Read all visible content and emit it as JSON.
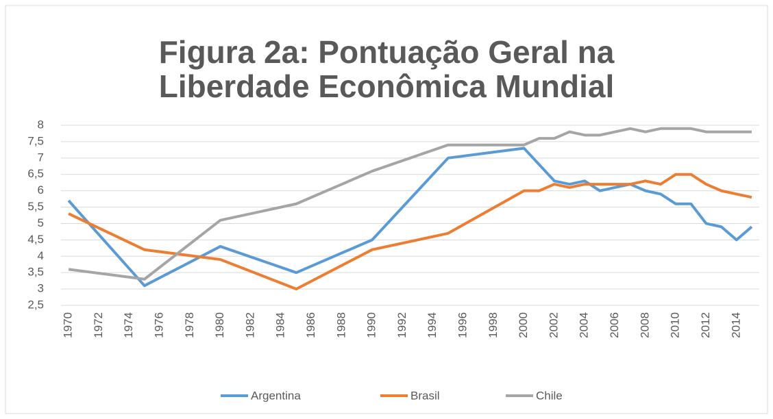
{
  "chart_data": {
    "type": "line",
    "title": [
      "Figura 2a: Pontuação Geral na",
      "Liberdade Econômica Mundial"
    ],
    "x": [
      1970,
      1975,
      1980,
      1985,
      1990,
      1995,
      2000,
      2001,
      2002,
      2003,
      2004,
      2005,
      2006,
      2007,
      2008,
      2009,
      2010,
      2011,
      2012,
      2013,
      2014,
      2015
    ],
    "series": [
      {
        "name": "Argentina",
        "color": "#5b9bd5",
        "values": [
          5.7,
          3.1,
          4.3,
          3.5,
          4.5,
          7.0,
          7.3,
          6.8,
          6.3,
          6.2,
          6.3,
          6.0,
          6.1,
          6.2,
          6.0,
          5.9,
          5.6,
          5.6,
          5.0,
          4.9,
          4.5,
          4.9
        ]
      },
      {
        "name": "Brasil",
        "color": "#ed7d31",
        "values": [
          5.3,
          4.2,
          3.9,
          3.0,
          4.2,
          4.7,
          6.0,
          6.0,
          6.2,
          6.1,
          6.2,
          6.2,
          6.2,
          6.2,
          6.3,
          6.2,
          6.5,
          6.5,
          6.2,
          6.0,
          5.9,
          5.8
        ]
      },
      {
        "name": "Chile",
        "color": "#a5a5a5",
        "values": [
          3.6,
          3.3,
          5.1,
          5.6,
          6.6,
          7.4,
          7.4,
          7.6,
          7.6,
          7.8,
          7.7,
          7.7,
          7.8,
          7.9,
          7.8,
          7.9,
          7.9,
          7.9,
          7.8,
          7.8,
          7.8,
          7.8
        ]
      }
    ],
    "xlim": [
      1969.5,
      2015.5
    ],
    "xticks": [
      1970,
      1972,
      1974,
      1976,
      1978,
      1980,
      1982,
      1984,
      1986,
      1988,
      1990,
      1992,
      1994,
      1996,
      1998,
      2000,
      2002,
      2004,
      2006,
      2008,
      2010,
      2012,
      2014
    ],
    "ylim": [
      2.5,
      8
    ],
    "yticks": [
      {
        "value": 2.5,
        "label": "2,5"
      },
      3,
      {
        "value": 3.5,
        "label": "3,5"
      },
      4,
      {
        "value": 4.5,
        "label": "4,5"
      },
      5,
      {
        "value": 5.5,
        "label": "5,5"
      },
      6,
      {
        "value": 6.5,
        "label": "6,5"
      },
      7,
      {
        "value": 7.5,
        "label": "7,5"
      },
      8
    ],
    "grid": true,
    "legend": "bottom"
  }
}
